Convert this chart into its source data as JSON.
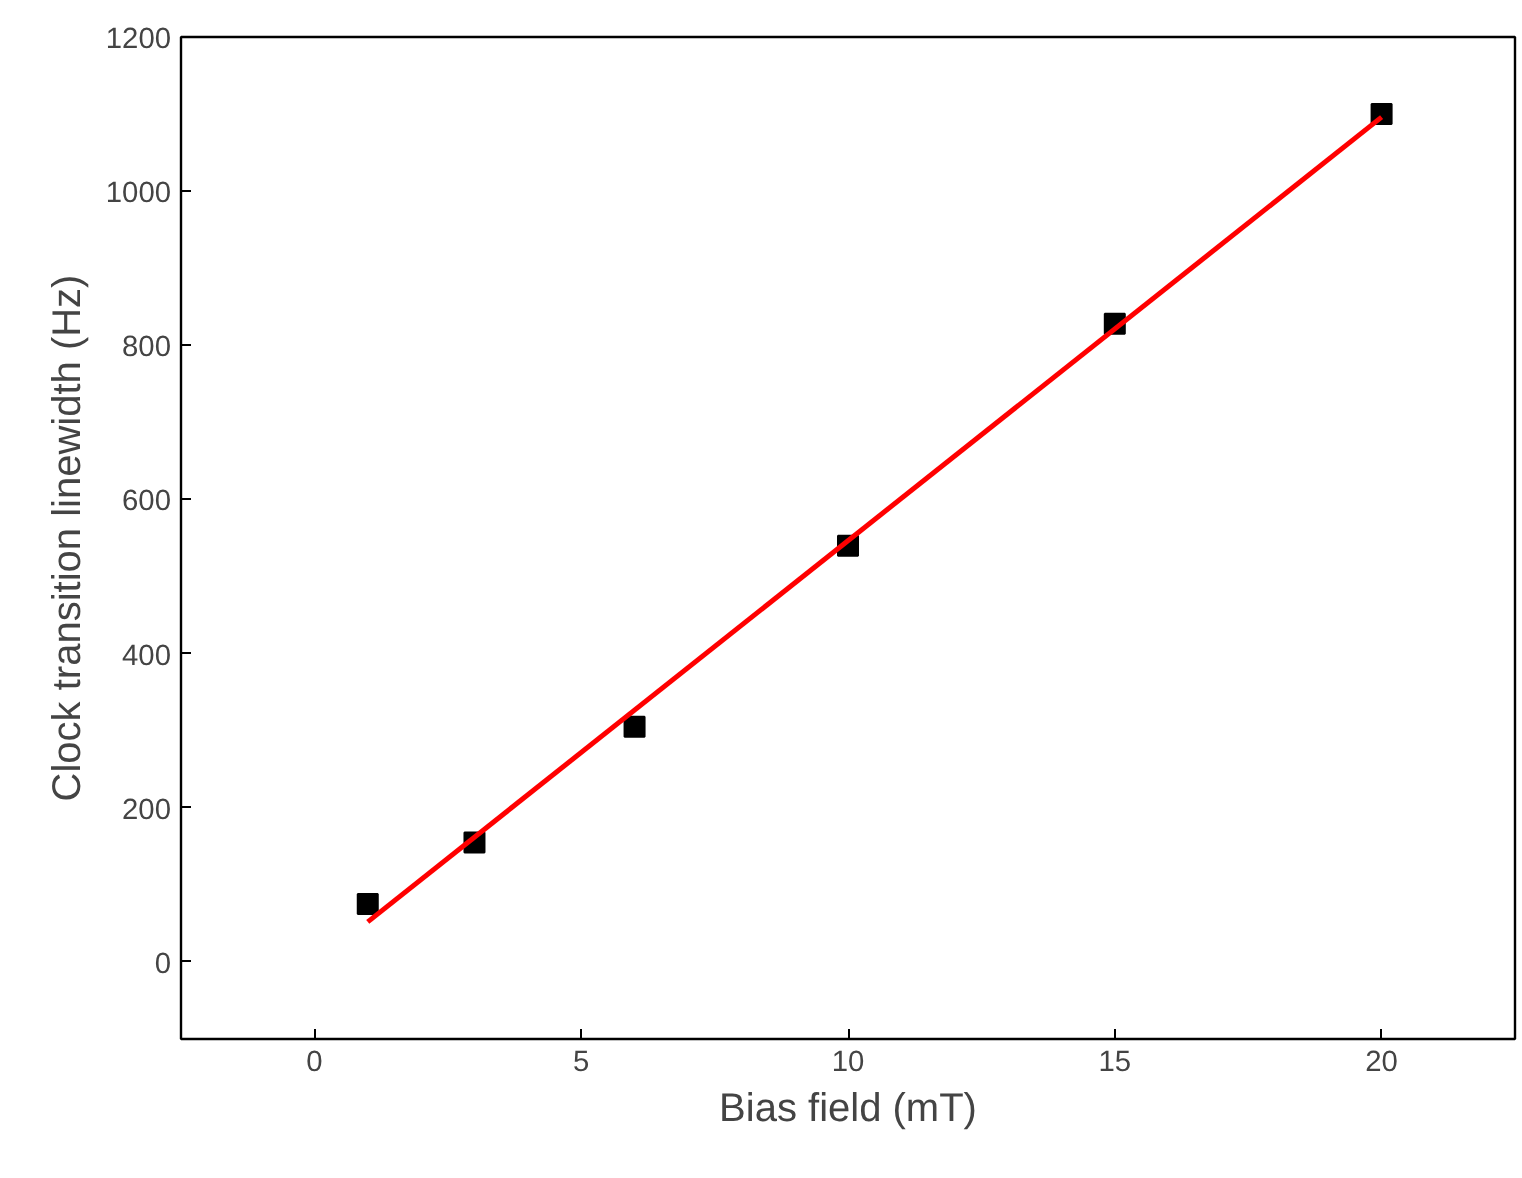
{
  "chart_data": {
    "type": "scatter",
    "xlabel": "Bias field (mT)",
    "ylabel": "Clock transition linewidth (Hz)",
    "x": [
      1,
      3,
      6,
      10,
      15,
      20
    ],
    "series": [
      {
        "color": "#000000",
        "marker": "square",
        "values": [
          75,
          155,
          305,
          540,
          828,
          1100
        ]
      },
      {
        "type": "line",
        "color": "#ff0000",
        "x": [
          1,
          20
        ],
        "values": [
          52,
          1096
        ],
        "line_style": "solid"
      }
    ],
    "xlim": [
      -2.5,
      22.5
    ],
    "ylim": [
      -100,
      1200
    ],
    "xticks": [
      0,
      5,
      10,
      15,
      20
    ],
    "yticks": [
      0,
      200,
      400,
      600,
      800,
      1000,
      1200
    ],
    "grid": false
  }
}
